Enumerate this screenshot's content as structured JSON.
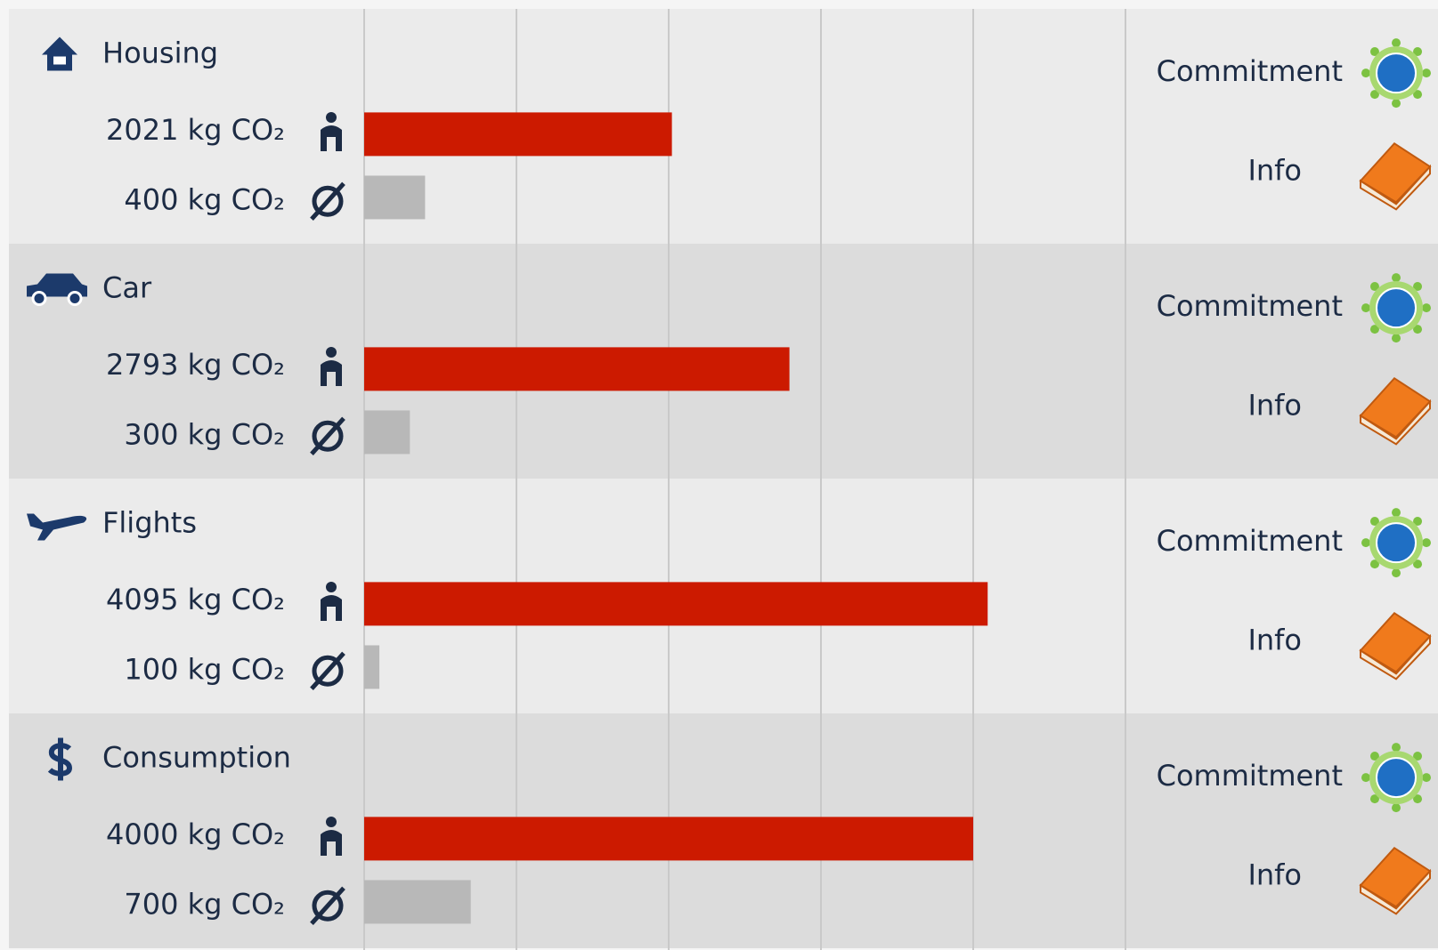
{
  "chart_data": {
    "type": "bar",
    "xlim": [
      0,
      5000
    ],
    "xticks": [
      0,
      1000,
      2000,
      3000,
      4000,
      5000
    ],
    "grid": true,
    "user_color": "#cc1a00",
    "average_color": "#b8b8b8",
    "categories": [
      {
        "name": "Housing",
        "user": 2021,
        "user_label": "2021 kg CO₂",
        "average": 400,
        "average_label": "400 kg CO₂",
        "actions": [
          "Commitment",
          "Info"
        ]
      },
      {
        "name": "Car",
        "user": 2793,
        "user_label": "2793 kg CO₂",
        "average": 300,
        "average_label": "300 kg CO₂",
        "actions": [
          "Commitment",
          "Info"
        ]
      },
      {
        "name": "Flights",
        "user": 4095,
        "user_label": "4095 kg CO₂",
        "average": 100,
        "average_label": "100 kg CO₂",
        "actions": [
          "Commitment",
          "Info"
        ]
      },
      {
        "name": "Consumption",
        "user": 4000,
        "user_label": "4000 kg CO₂",
        "average": 700,
        "average_label": "700 kg CO₂",
        "actions": [
          "Commitment",
          "Info"
        ]
      }
    ]
  }
}
